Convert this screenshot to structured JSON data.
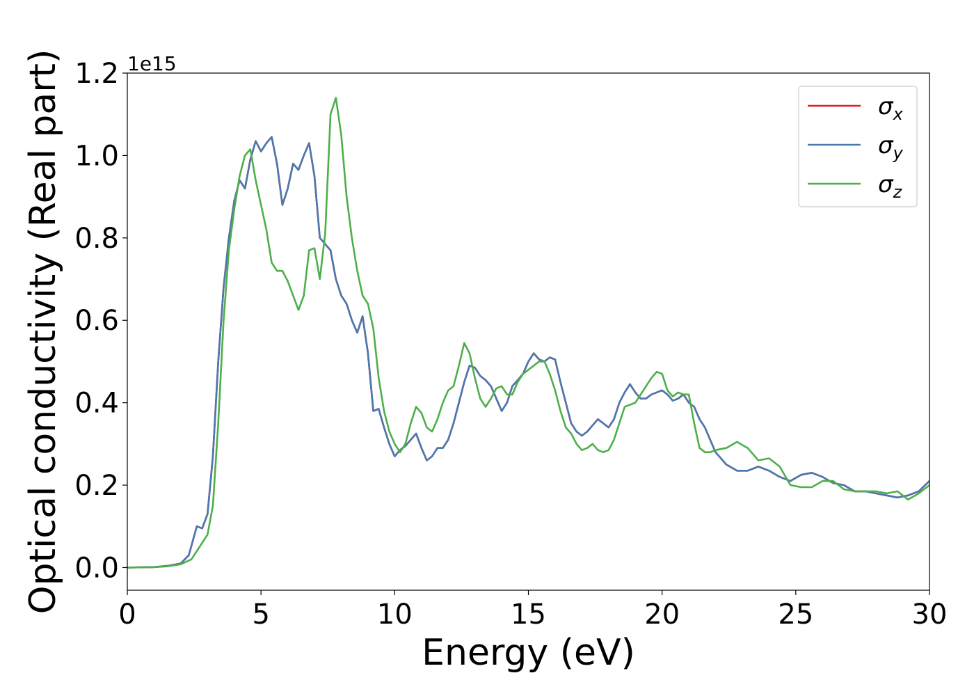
{
  "chart_data": {
    "type": "line",
    "xlabel": "Energy (eV)",
    "ylabel": "Optical conductivity (Real part)",
    "y_offset_label": "1e15",
    "xlim": [
      0,
      30
    ],
    "ylim": [
      -0.055,
      1.2
    ],
    "x_ticks": [
      0,
      5,
      10,
      15,
      20,
      25,
      30
    ],
    "y_ticks": [
      0.0,
      0.2,
      0.4,
      0.6,
      0.8,
      1.0,
      1.2
    ],
    "x_tick_labels": [
      "0",
      "5",
      "10",
      "15",
      "20",
      "25",
      "30"
    ],
    "y_tick_labels": [
      "0.0",
      "0.2",
      "0.4",
      "0.6",
      "0.8",
      "1.0",
      "1.2"
    ],
    "grid": false,
    "legend_position": "top-right",
    "series": [
      {
        "name": "σx",
        "symbol": "σ",
        "subscript": "x",
        "color": "#e41a1c",
        "x": [
          0,
          1,
          1.5,
          2,
          2.3,
          2.6,
          2.8,
          3.0,
          3.2,
          3.4,
          3.6,
          3.8,
          4.0,
          4.2,
          4.4,
          4.6,
          4.8,
          5.0,
          5.2,
          5.4,
          5.6,
          5.8,
          6.0,
          6.2,
          6.4,
          6.6,
          6.8,
          7.0,
          7.2,
          7.4,
          7.6,
          7.8,
          8.0,
          8.2,
          8.4,
          8.6,
          8.8,
          9.0,
          9.2,
          9.4,
          9.6,
          9.8,
          10.0,
          10.2,
          10.4,
          10.6,
          10.8,
          11.0,
          11.2,
          11.4,
          11.6,
          11.8,
          12.0,
          12.2,
          12.4,
          12.6,
          12.8,
          13.0,
          13.2,
          13.4,
          13.6,
          13.8,
          14.0,
          14.2,
          14.4,
          14.6,
          14.8,
          15.0,
          15.2,
          15.4,
          15.6,
          15.8,
          16.0,
          16.2,
          16.4,
          16.6,
          16.8,
          17.0,
          17.2,
          17.4,
          17.6,
          17.8,
          18.0,
          18.2,
          18.4,
          18.6,
          18.8,
          19.0,
          19.2,
          19.4,
          19.6,
          19.8,
          20.0,
          20.2,
          20.4,
          20.6,
          20.8,
          21.0,
          21.2,
          21.4,
          21.6,
          21.8,
          22.0,
          22.4,
          22.8,
          23.2,
          23.6,
          24.0,
          24.4,
          24.8,
          25.2,
          25.6,
          26.0,
          26.4,
          26.8,
          27.2,
          27.6,
          28.0,
          28.4,
          28.8,
          29.2,
          29.6,
          30.0
        ],
        "y": [
          0.0,
          0.001,
          0.004,
          0.01,
          0.03,
          0.1,
          0.095,
          0.13,
          0.27,
          0.5,
          0.68,
          0.8,
          0.89,
          0.94,
          0.92,
          0.99,
          1.035,
          1.01,
          1.03,
          1.045,
          0.98,
          0.88,
          0.92,
          0.98,
          0.965,
          1.0,
          1.03,
          0.95,
          0.8,
          0.785,
          0.77,
          0.7,
          0.66,
          0.64,
          0.6,
          0.57,
          0.61,
          0.52,
          0.38,
          0.385,
          0.34,
          0.3,
          0.27,
          0.285,
          0.295,
          0.31,
          0.325,
          0.29,
          0.26,
          0.27,
          0.29,
          0.29,
          0.31,
          0.35,
          0.4,
          0.45,
          0.49,
          0.485,
          0.465,
          0.455,
          0.44,
          0.41,
          0.38,
          0.4,
          0.44,
          0.455,
          0.47,
          0.5,
          0.52,
          0.505,
          0.5,
          0.51,
          0.505,
          0.45,
          0.4,
          0.35,
          0.33,
          0.32,
          0.33,
          0.345,
          0.36,
          0.35,
          0.34,
          0.36,
          0.4,
          0.425,
          0.445,
          0.425,
          0.41,
          0.41,
          0.42,
          0.425,
          0.43,
          0.42,
          0.405,
          0.41,
          0.42,
          0.4,
          0.39,
          0.36,
          0.34,
          0.31,
          0.28,
          0.25,
          0.235,
          0.235,
          0.245,
          0.235,
          0.22,
          0.21,
          0.225,
          0.23,
          0.22,
          0.205,
          0.2,
          0.185,
          0.185,
          0.18,
          0.175,
          0.17,
          0.175,
          0.185,
          0.21
        ]
      },
      {
        "name": "σy",
        "symbol": "σ",
        "subscript": "y",
        "color": "#4a78b0",
        "x": [
          0,
          1,
          1.5,
          2,
          2.3,
          2.6,
          2.8,
          3.0,
          3.2,
          3.4,
          3.6,
          3.8,
          4.0,
          4.2,
          4.4,
          4.6,
          4.8,
          5.0,
          5.2,
          5.4,
          5.6,
          5.8,
          6.0,
          6.2,
          6.4,
          6.6,
          6.8,
          7.0,
          7.2,
          7.4,
          7.6,
          7.8,
          8.0,
          8.2,
          8.4,
          8.6,
          8.8,
          9.0,
          9.2,
          9.4,
          9.6,
          9.8,
          10.0,
          10.2,
          10.4,
          10.6,
          10.8,
          11.0,
          11.2,
          11.4,
          11.6,
          11.8,
          12.0,
          12.2,
          12.4,
          12.6,
          12.8,
          13.0,
          13.2,
          13.4,
          13.6,
          13.8,
          14.0,
          14.2,
          14.4,
          14.6,
          14.8,
          15.0,
          15.2,
          15.4,
          15.6,
          15.8,
          16.0,
          16.2,
          16.4,
          16.6,
          16.8,
          17.0,
          17.2,
          17.4,
          17.6,
          17.8,
          18.0,
          18.2,
          18.4,
          18.6,
          18.8,
          19.0,
          19.2,
          19.4,
          19.6,
          19.8,
          20.0,
          20.2,
          20.4,
          20.6,
          20.8,
          21.0,
          21.2,
          21.4,
          21.6,
          21.8,
          22.0,
          22.4,
          22.8,
          23.2,
          23.6,
          24.0,
          24.4,
          24.8,
          25.2,
          25.6,
          26.0,
          26.4,
          26.8,
          27.2,
          27.6,
          28.0,
          28.4,
          28.8,
          29.2,
          29.6,
          30.0
        ],
        "y": [
          0.0,
          0.001,
          0.004,
          0.01,
          0.03,
          0.1,
          0.095,
          0.13,
          0.27,
          0.5,
          0.68,
          0.8,
          0.89,
          0.94,
          0.92,
          0.99,
          1.035,
          1.01,
          1.03,
          1.045,
          0.98,
          0.88,
          0.92,
          0.98,
          0.965,
          1.0,
          1.03,
          0.95,
          0.8,
          0.785,
          0.77,
          0.7,
          0.66,
          0.64,
          0.6,
          0.57,
          0.61,
          0.52,
          0.38,
          0.385,
          0.34,
          0.3,
          0.27,
          0.285,
          0.295,
          0.31,
          0.325,
          0.29,
          0.26,
          0.27,
          0.29,
          0.29,
          0.31,
          0.35,
          0.4,
          0.45,
          0.49,
          0.485,
          0.465,
          0.455,
          0.44,
          0.41,
          0.38,
          0.4,
          0.44,
          0.455,
          0.47,
          0.5,
          0.52,
          0.505,
          0.5,
          0.51,
          0.505,
          0.45,
          0.4,
          0.35,
          0.33,
          0.32,
          0.33,
          0.345,
          0.36,
          0.35,
          0.34,
          0.36,
          0.4,
          0.425,
          0.445,
          0.425,
          0.41,
          0.41,
          0.42,
          0.425,
          0.43,
          0.42,
          0.405,
          0.41,
          0.42,
          0.4,
          0.39,
          0.36,
          0.34,
          0.31,
          0.28,
          0.25,
          0.235,
          0.235,
          0.245,
          0.235,
          0.22,
          0.21,
          0.225,
          0.23,
          0.22,
          0.205,
          0.2,
          0.185,
          0.185,
          0.18,
          0.175,
          0.17,
          0.175,
          0.185,
          0.21
        ]
      },
      {
        "name": "σz",
        "symbol": "σ",
        "subscript": "z",
        "color": "#4daf4a",
        "x": [
          0,
          1,
          1.5,
          2,
          2.4,
          2.8,
          3.0,
          3.2,
          3.4,
          3.6,
          3.8,
          4.0,
          4.2,
          4.4,
          4.6,
          4.8,
          5.0,
          5.2,
          5.4,
          5.6,
          5.8,
          6.0,
          6.2,
          6.4,
          6.6,
          6.8,
          7.0,
          7.2,
          7.4,
          7.6,
          7.8,
          8.0,
          8.2,
          8.4,
          8.6,
          8.8,
          9.0,
          9.2,
          9.4,
          9.6,
          9.8,
          10.0,
          10.2,
          10.4,
          10.6,
          10.8,
          11.0,
          11.2,
          11.4,
          11.6,
          11.8,
          12.0,
          12.2,
          12.4,
          12.6,
          12.8,
          13.0,
          13.2,
          13.4,
          13.6,
          13.8,
          14.0,
          14.2,
          14.4,
          14.6,
          14.8,
          15.0,
          15.2,
          15.4,
          15.6,
          15.8,
          16.0,
          16.2,
          16.4,
          16.6,
          16.8,
          17.0,
          17.2,
          17.4,
          17.6,
          17.8,
          18.0,
          18.2,
          18.4,
          18.6,
          18.8,
          19.0,
          19.2,
          19.4,
          19.6,
          19.8,
          20.0,
          20.2,
          20.4,
          20.6,
          20.8,
          21.0,
          21.2,
          21.4,
          21.6,
          21.8,
          22.0,
          22.4,
          22.8,
          23.2,
          23.6,
          24.0,
          24.4,
          24.8,
          25.2,
          25.6,
          26.0,
          26.4,
          26.8,
          27.2,
          27.6,
          28.0,
          28.4,
          28.8,
          29.2,
          29.6,
          30.0
        ],
        "y": [
          0.0,
          0.001,
          0.003,
          0.008,
          0.02,
          0.06,
          0.08,
          0.15,
          0.35,
          0.6,
          0.77,
          0.87,
          0.95,
          1.0,
          1.015,
          0.94,
          0.88,
          0.82,
          0.74,
          0.72,
          0.72,
          0.695,
          0.66,
          0.625,
          0.66,
          0.77,
          0.775,
          0.7,
          0.81,
          1.1,
          1.14,
          1.05,
          0.9,
          0.8,
          0.72,
          0.66,
          0.64,
          0.58,
          0.46,
          0.38,
          0.33,
          0.3,
          0.28,
          0.3,
          0.35,
          0.39,
          0.375,
          0.34,
          0.33,
          0.36,
          0.4,
          0.43,
          0.44,
          0.49,
          0.545,
          0.52,
          0.46,
          0.41,
          0.39,
          0.41,
          0.435,
          0.44,
          0.42,
          0.42,
          0.45,
          0.47,
          0.48,
          0.49,
          0.5,
          0.5,
          0.47,
          0.43,
          0.38,
          0.34,
          0.325,
          0.3,
          0.285,
          0.29,
          0.3,
          0.285,
          0.28,
          0.285,
          0.31,
          0.35,
          0.39,
          0.395,
          0.4,
          0.42,
          0.44,
          0.46,
          0.475,
          0.47,
          0.43,
          0.415,
          0.425,
          0.42,
          0.42,
          0.35,
          0.29,
          0.28,
          0.28,
          0.285,
          0.29,
          0.305,
          0.29,
          0.26,
          0.265,
          0.245,
          0.2,
          0.195,
          0.195,
          0.21,
          0.21,
          0.19,
          0.185,
          0.185,
          0.185,
          0.18,
          0.185,
          0.165,
          0.18,
          0.2
        ]
      }
    ]
  }
}
